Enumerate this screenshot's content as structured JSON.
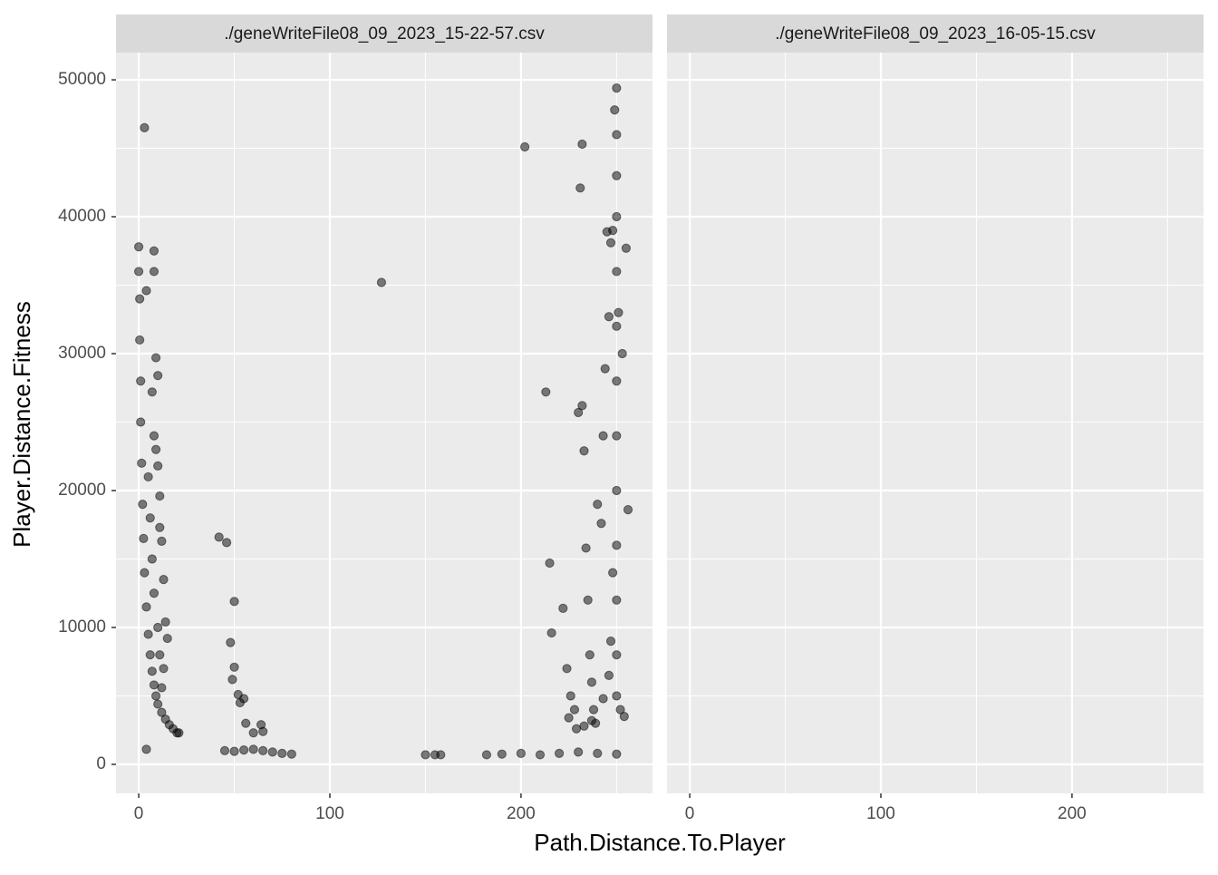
{
  "chart_data": [
    {
      "type": "scatter",
      "title": "./geneWriteFile08_09_2023_15-22-57.csv",
      "xlabel": "Path.Distance.To.Player",
      "ylabel": "Player.Distance.Fitness",
      "color": "#000000",
      "alpha": 0.5,
      "grid": true,
      "xlim": [
        -11.9,
        268.8
      ],
      "xticks": [
        0,
        100,
        200
      ],
      "ylim": [
        -2120,
        51990
      ],
      "yticks": [
        0,
        10000,
        20000,
        30000,
        40000,
        50000
      ],
      "x": [
        0,
        0,
        0.5,
        0.5,
        1,
        1,
        1.5,
        2,
        2.5,
        3,
        4,
        5,
        6,
        7,
        8,
        9,
        10,
        12,
        14,
        16,
        18,
        20,
        21,
        3,
        4,
        8,
        8,
        4,
        9,
        10,
        7,
        8,
        9,
        10,
        11,
        11,
        12,
        13,
        14,
        15,
        13,
        12,
        5,
        6,
        7,
        8,
        10,
        11,
        42,
        46,
        48,
        50,
        50,
        49,
        52,
        53,
        55,
        56,
        60,
        64,
        65,
        45,
        50,
        55,
        60,
        65,
        70,
        75,
        80,
        127,
        150,
        155,
        158,
        182,
        190,
        200,
        210,
        220,
        230,
        240,
        250,
        202,
        213,
        215,
        216,
        222,
        224,
        226,
        228,
        230,
        231,
        232,
        232,
        233,
        234,
        235,
        236,
        237,
        238,
        239,
        240,
        242,
        243,
        244,
        245,
        246,
        247,
        248,
        249,
        250,
        250,
        250,
        250,
        250,
        250,
        250,
        250,
        250,
        250,
        250,
        250,
        250,
        252,
        254,
        255,
        253,
        251,
        256,
        225,
        229,
        233,
        237,
        243,
        246,
        247,
        248
      ],
      "y": [
        37800,
        36000,
        34000,
        31000,
        28000,
        25000,
        22000,
        19000,
        16500,
        14000,
        11500,
        9500,
        8000,
        6800,
        5800,
        5000,
        4400,
        3800,
        3300,
        2900,
        2600,
        2300,
        2300,
        46500,
        1100,
        37500,
        36000,
        34600,
        29700,
        28400,
        27200,
        24000,
        23000,
        21800,
        19600,
        17300,
        16300,
        13500,
        10400,
        9200,
        7000,
        5600,
        21000,
        18000,
        15000,
        12500,
        10000,
        8000,
        16600,
        16200,
        8900,
        11900,
        7100,
        6200,
        5100,
        4500,
        4800,
        3000,
        2300,
        2900,
        2400,
        1000,
        950,
        1050,
        1100,
        1000,
        900,
        800,
        750,
        35200,
        700,
        700,
        700,
        700,
        750,
        800,
        700,
        800,
        900,
        800,
        750,
        45100,
        27200,
        14700,
        9600,
        11400,
        7000,
        5000,
        4000,
        25700,
        42100,
        45300,
        26200,
        22900,
        15800,
        12000,
        8000,
        6000,
        4000,
        3000,
        19000,
        17600,
        24000,
        28900,
        38900,
        32700,
        38100,
        39000,
        47800,
        49400,
        46000,
        43000,
        40000,
        36000,
        32000,
        28000,
        24000,
        20000,
        16000,
        12000,
        8000,
        5000,
        4000,
        3500,
        37700,
        30000,
        33000,
        18600,
        3400,
        2600,
        2800,
        3200,
        4800,
        6500,
        9000,
        14000
      ]
    },
    {
      "type": "scatter",
      "title": "./geneWriteFile08_09_2023_16-05-15.csv",
      "xlim": [
        -11.9,
        268.8
      ],
      "xticks": [
        0,
        100,
        200
      ]
    }
  ]
}
